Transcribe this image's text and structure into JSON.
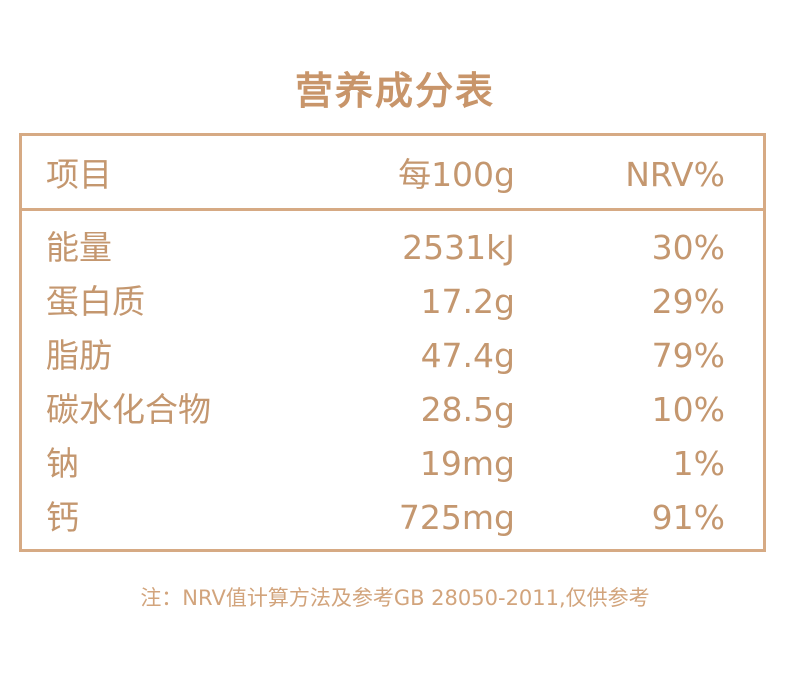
{
  "header": {
    "title": "营养成分表"
  },
  "table": {
    "columns": [
      "项目",
      "每100g",
      "NRV%"
    ],
    "rows": [
      [
        "能量",
        "2531kJ",
        "30%"
      ],
      [
        "蛋白质",
        "17.2g",
        "29%"
      ],
      [
        "脂肪",
        "47.4g",
        "79%"
      ],
      [
        "碳水化合物",
        "28.5g",
        "10%"
      ],
      [
        "钠",
        "19mg",
        "1%"
      ],
      [
        "钙",
        "725mg",
        "91%"
      ]
    ]
  },
  "footer": {
    "note": "注：NRV值计算方法及参考GB 28050-2011,仅供参考"
  }
}
